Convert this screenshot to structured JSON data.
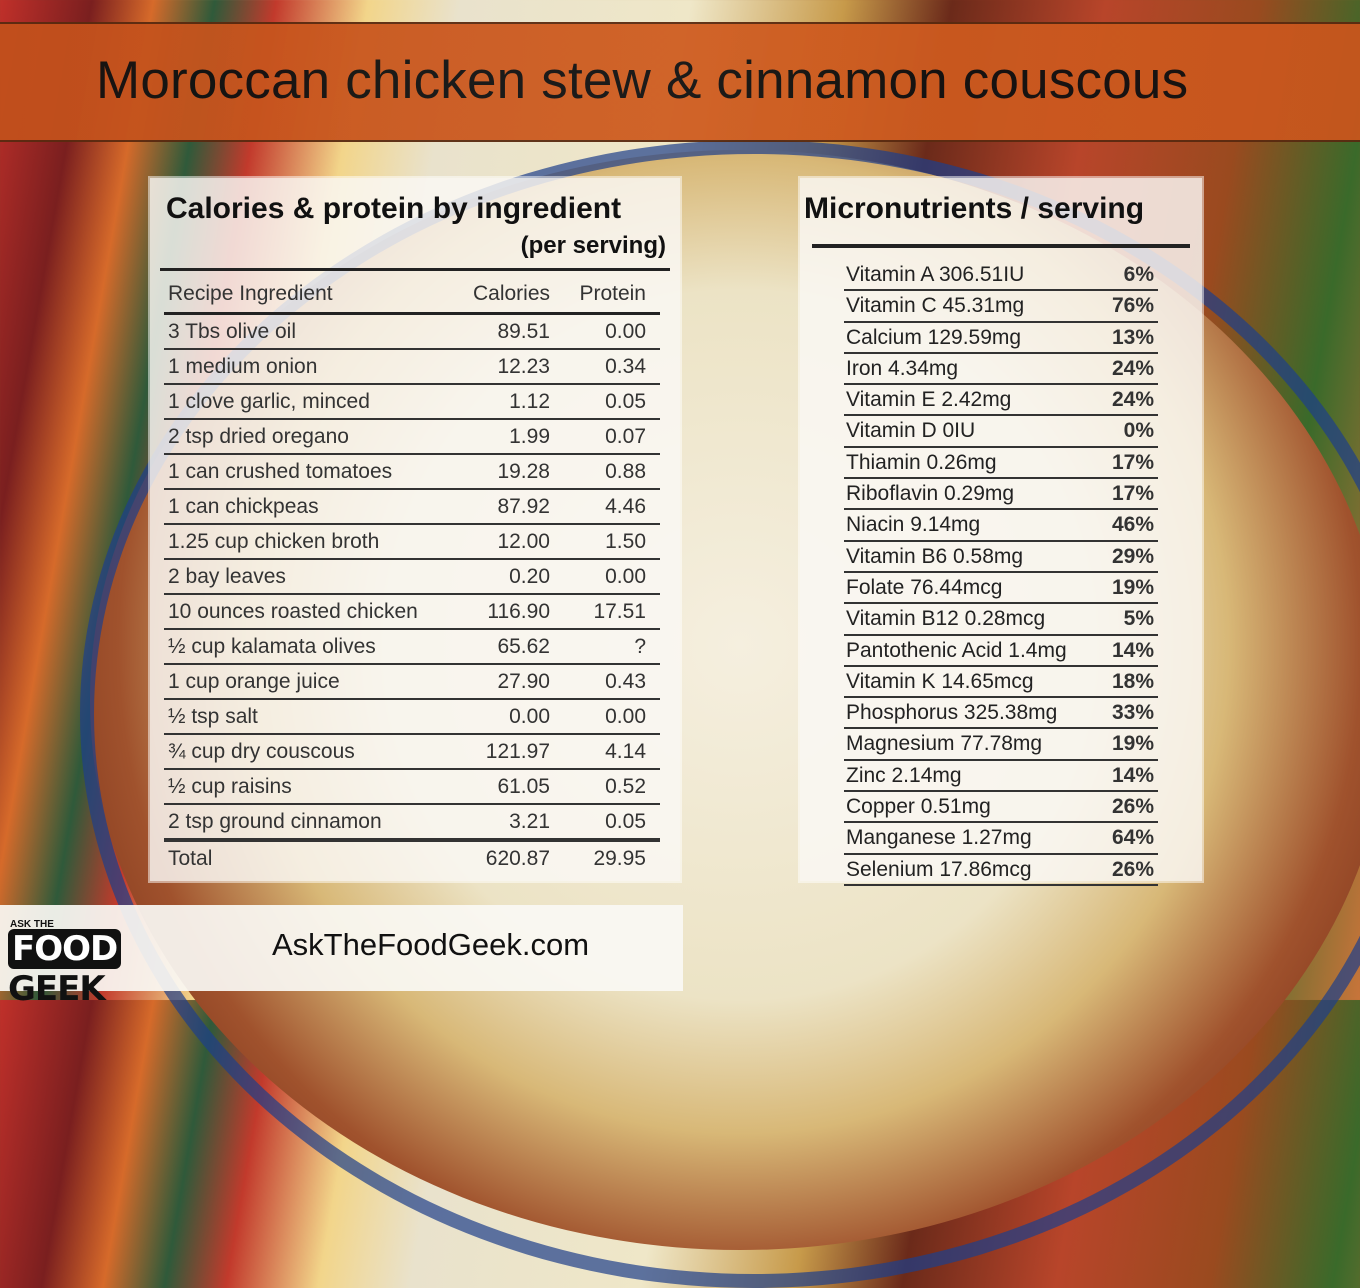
{
  "title": "Moroccan chicken stew & cinnamon couscous",
  "left_panel": {
    "title": "Calories & protein by ingredient",
    "subtitle": "(per serving)",
    "headers": {
      "ingredient": "Recipe Ingredient",
      "calories": "Calories",
      "protein": "Protein"
    },
    "rows": [
      {
        "ingredient": "3 Tbs olive oil",
        "calories": "89.51",
        "protein": "0.00"
      },
      {
        "ingredient": "1 medium onion",
        "calories": "12.23",
        "protein": "0.34"
      },
      {
        "ingredient": "1 clove garlic, minced",
        "calories": "1.12",
        "protein": "0.05"
      },
      {
        "ingredient": "2 tsp dried oregano",
        "calories": "1.99",
        "protein": "0.07"
      },
      {
        "ingredient": "1 can crushed tomatoes",
        "calories": "19.28",
        "protein": "0.88"
      },
      {
        "ingredient": "1 can chickpeas",
        "calories": "87.92",
        "protein": "4.46"
      },
      {
        "ingredient": "1.25 cup chicken broth",
        "calories": "12.00",
        "protein": "1.50"
      },
      {
        "ingredient": "2 bay leaves",
        "calories": "0.20",
        "protein": "0.00"
      },
      {
        "ingredient": "10 ounces roasted chicken",
        "calories": "116.90",
        "protein": "17.51"
      },
      {
        "ingredient": "½ cup kalamata olives",
        "calories": "65.62",
        "protein": "?"
      },
      {
        "ingredient": "1 cup orange juice",
        "calories": "27.90",
        "protein": "0.43"
      },
      {
        "ingredient": "½ tsp salt",
        "calories": "0.00",
        "protein": "0.00"
      },
      {
        "ingredient": "¾ cup dry couscous",
        "calories": "121.97",
        "protein": "4.14"
      },
      {
        "ingredient": "½ cup raisins",
        "calories": "61.05",
        "protein": "0.52"
      },
      {
        "ingredient": "2 tsp ground cinnamon",
        "calories": "3.21",
        "protein": "0.05"
      }
    ],
    "total": {
      "ingredient": "Total",
      "calories": "620.87",
      "protein": "29.95"
    }
  },
  "right_panel": {
    "title": "Micronutrients / serving",
    "rows": [
      {
        "name": "Vitamin A 306.51IU",
        "pct": "6%"
      },
      {
        "name": "Vitamin C 45.31mg",
        "pct": "76%"
      },
      {
        "name": "Calcium 129.59mg",
        "pct": "13%"
      },
      {
        "name": "Iron 4.34mg",
        "pct": "24%"
      },
      {
        "name": "Vitamin E 2.42mg",
        "pct": "24%"
      },
      {
        "name": "Vitamin D 0IU",
        "pct": "0%"
      },
      {
        "name": "Thiamin 0.26mg",
        "pct": "17%"
      },
      {
        "name": "Riboflavin 0.29mg",
        "pct": "17%"
      },
      {
        "name": "Niacin 9.14mg",
        "pct": "46%"
      },
      {
        "name": "Vitamin B6 0.58mg",
        "pct": "29%"
      },
      {
        "name": "Folate 76.44mcg",
        "pct": "19%"
      },
      {
        "name": "Vitamin B12 0.28mcg",
        "pct": "5%"
      },
      {
        "name": "Pantothenic Acid 1.4mg",
        "pct": "14%"
      },
      {
        "name": "Vitamin K 14.65mcg",
        "pct": "18%"
      },
      {
        "name": "Phosphorus 325.38mg",
        "pct": "33%"
      },
      {
        "name": "Magnesium 77.78mg",
        "pct": "19%"
      },
      {
        "name": "Zinc 2.14mg",
        "pct": "14%"
      },
      {
        "name": "Copper 0.51mg",
        "pct": "26%"
      },
      {
        "name": "Manganese 1.27mg",
        "pct": "64%"
      },
      {
        "name": "Selenium 17.86mcg",
        "pct": "26%"
      }
    ]
  },
  "footer": {
    "logo_top": "ASK THE",
    "logo_food": "FOOD",
    "logo_geek": "GEEK",
    "site": "AskTheFoodGeek.com"
  },
  "colors": {
    "header_bg": "#cf5d21",
    "panel_bg": "#faf8f4",
    "text": "#111111"
  }
}
